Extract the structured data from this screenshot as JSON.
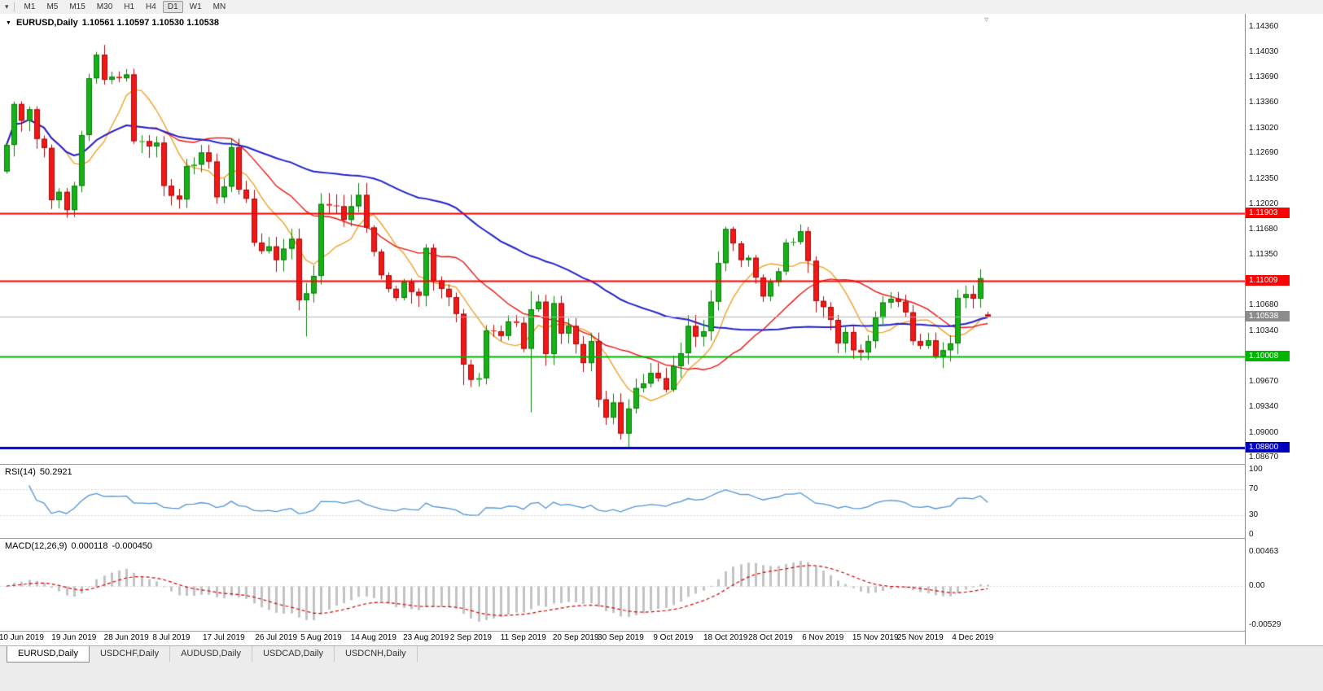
{
  "icons": {
    "dropdown": "▾",
    "collapse": "▼",
    "shift_marker": "▿"
  },
  "toolbar": {
    "timeframes": [
      "M1",
      "M5",
      "M15",
      "M30",
      "H1",
      "H4",
      "D1",
      "W1",
      "MN"
    ],
    "active_timeframe": "D1"
  },
  "chart": {
    "title_symbol": "EURUSD,Daily",
    "title_ohlc": "1.10561 1.10597 1.10530 1.10538"
  },
  "indicators": {
    "rsi": {
      "label": "RSI(14)",
      "value": "50.2921",
      "ticks": [
        "100",
        "70",
        "30",
        "0"
      ],
      "tick_values": [
        100,
        70,
        30,
        0
      ],
      "levels": [
        70,
        30
      ],
      "color": "#4f93d6"
    },
    "macd": {
      "label": "MACD(12,26,9)",
      "value_main": "0.000118",
      "value_signal": "-0.000450",
      "ticks": [
        "0.00463",
        "0.00",
        "-0.00529"
      ],
      "tick_values": [
        0.00463,
        0,
        -0.00529
      ],
      "histogram_color": "#c2c2c2",
      "signal_color": "#d40000"
    }
  },
  "price_axis": {
    "ticks": [
      "1.14360",
      "1.14030",
      "1.13690",
      "1.13360",
      "1.13020",
      "1.12690",
      "1.12350",
      "1.12020",
      "1.11680",
      "1.11350",
      "1.10680",
      "1.10340",
      "1.09670",
      "1.09340",
      "1.09000",
      "1.08670"
    ],
    "badges": [
      {
        "text": "1.11903",
        "value": 1.11903,
        "bg": "#ff0000",
        "fg": "#ffffff",
        "name": "resistance-level-badge-1"
      },
      {
        "text": "1.11009",
        "value": 1.11009,
        "bg": "#ff0000",
        "fg": "#ffffff",
        "name": "resistance-level-badge-2"
      },
      {
        "text": "1.10538",
        "value": 1.10538,
        "bg": "#8c8c8c",
        "fg": "#ffffff",
        "name": "current-price-badge"
      },
      {
        "text": "1.10008",
        "value": 1.10008,
        "bg": "#00b400",
        "fg": "#ffffff",
        "name": "support-level-badge"
      },
      {
        "text": "1.08800",
        "value": 1.088,
        "bg": "#0000c0",
        "fg": "#ffffff",
        "name": "lower-support-level-badge"
      }
    ]
  },
  "chart_data": {
    "type": "candlestick",
    "symbol": "EURUSD",
    "period": "Daily",
    "title": "EURUSD,Daily",
    "x_labels": [
      {
        "label": "10 Jun 2019",
        "index": 2
      },
      {
        "label": "19 Jun 2019",
        "index": 9
      },
      {
        "label": "28 Jun 2019",
        "index": 16
      },
      {
        "label": "8 Jul 2019",
        "index": 22
      },
      {
        "label": "17 Jul 2019",
        "index": 29
      },
      {
        "label": "26 Jul 2019",
        "index": 36
      },
      {
        "label": "5 Aug 2019",
        "index": 42
      },
      {
        "label": "14 Aug 2019",
        "index": 49
      },
      {
        "label": "23 Aug 2019",
        "index": 56
      },
      {
        "label": "2 Sep 2019",
        "index": 62
      },
      {
        "label": "11 Sep 2019",
        "index": 69
      },
      {
        "label": "20 Sep 2019",
        "index": 76
      },
      {
        "label": "30 Sep 2019",
        "index": 82
      },
      {
        "label": "9 Oct 2019",
        "index": 89
      },
      {
        "label": "18 Oct 2019",
        "index": 96
      },
      {
        "label": "28 Oct 2019",
        "index": 102
      },
      {
        "label": "6 Nov 2019",
        "index": 109
      },
      {
        "label": "15 Nov 2019",
        "index": 116
      },
      {
        "label": "25 Nov 2019",
        "index": 122
      },
      {
        "label": "4 Dec 2019",
        "index": 129
      }
    ],
    "first_open": 1.1245,
    "closes": [
      1.128,
      1.1334,
      1.1312,
      1.1327,
      1.1288,
      1.1276,
      1.1207,
      1.1218,
      1.1194,
      1.1226,
      1.1293,
      1.1368,
      1.1399,
      1.1366,
      1.137,
      1.1368,
      1.1373,
      1.1285,
      1.1285,
      1.1278,
      1.1283,
      1.1226,
      1.1213,
      1.1208,
      1.1252,
      1.1254,
      1.127,
      1.1258,
      1.1211,
      1.1225,
      1.1277,
      1.1221,
      1.1209,
      1.1151,
      1.114,
      1.1146,
      1.1128,
      1.1143,
      1.1156,
      1.1075,
      1.1084,
      1.1107,
      1.1202,
      1.12,
      1.1199,
      1.1181,
      1.1199,
      1.1214,
      1.1171,
      1.1139,
      1.1108,
      1.109,
      1.1078,
      1.1099,
      1.1086,
      1.1081,
      1.1144,
      1.1101,
      1.109,
      1.1079,
      1.1057,
      1.099,
      1.097,
      1.0972,
      1.1035,
      1.1034,
      1.1028,
      1.1047,
      1.1045,
      1.1011,
      1.1063,
      1.1073,
      1.1004,
      1.1071,
      1.1031,
      1.1041,
      1.1017,
      1.0992,
      1.1021,
      1.0944,
      1.092,
      1.094,
      1.0899,
      1.0932,
      1.0959,
      1.0965,
      1.0979,
      1.0972,
      1.0957,
      1.0988,
      1.1005,
      1.1041,
      1.1027,
      1.1034,
      1.1073,
      1.1124,
      1.1169,
      1.115,
      1.1128,
      1.1131,
      1.1105,
      1.108,
      1.1099,
      1.1113,
      1.1151,
      1.1152,
      1.1166,
      1.1127,
      1.1074,
      1.1066,
      1.1049,
      1.1018,
      1.1033,
      1.1009,
      1.1006,
      1.1021,
      1.1052,
      1.1072,
      1.1077,
      1.1073,
      1.1059,
      1.1021,
      1.1015,
      1.1022,
      1.1001,
      1.1009,
      1.1018,
      1.1078,
      1.1083,
      1.1077,
      1.1104,
      1.10538
    ],
    "open_overrides": {
      "131": 1.10561
    },
    "wick_overrides": {
      "12": {
        "h": 1.1403
      },
      "13": {
        "h": 1.1412
      },
      "40": {
        "l": 1.1027
      },
      "61": {
        "l": 1.0963
      },
      "70": {
        "h": 1.1087,
        "l": 1.0927
      },
      "83": {
        "l": 1.0879
      },
      "96": {
        "h": 1.1172
      },
      "106": {
        "h": 1.1175
      },
      "131": {
        "h": 1.10597,
        "l": 1.1053
      }
    },
    "moving_averages": [
      {
        "name": "fast-ma",
        "period": 8,
        "color": "#f0a028",
        "width": 1.4
      },
      {
        "name": "medium-ma",
        "period": 20,
        "color": "#ee1111",
        "width": 1.4
      },
      {
        "name": "slow-ma",
        "period": 50,
        "color": "#2222cc",
        "width": 2
      }
    ],
    "horizontal_lines": [
      {
        "value": 1.11903,
        "color": "#ff0000",
        "width": 2
      },
      {
        "value": 1.11009,
        "color": "#ff0000",
        "width": 2
      },
      {
        "value": 1.10008,
        "color": "#00b400",
        "width": 2
      },
      {
        "value": 1.088,
        "color": "#0000c0",
        "width": 3
      },
      {
        "value": 1.10538,
        "color": "#b0b0b0",
        "width": 1
      }
    ],
    "candle_colors": {
      "bull_fill": "#18b018",
      "bull_stroke": "#0a7a0a",
      "bear_fill": "#f21818",
      "bear_stroke": "#a80808"
    }
  },
  "bottom_tabs": {
    "tabs": [
      "EURUSD,Daily",
      "USDCHF,Daily",
      "AUDUSD,Daily",
      "USDCAD,Daily",
      "USDCNH,Daily"
    ],
    "active_index": 0
  }
}
